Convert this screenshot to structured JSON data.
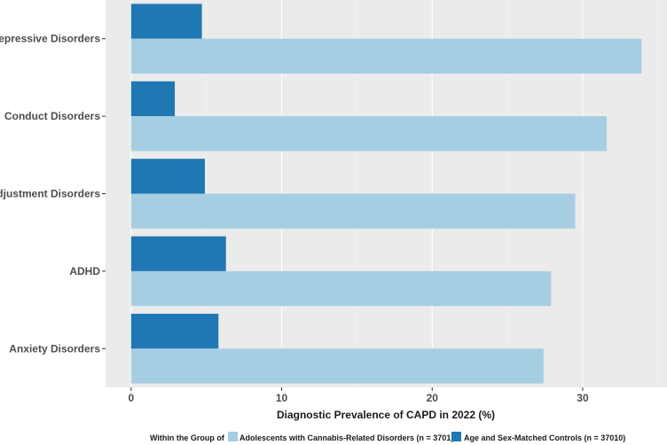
{
  "chart_data": {
    "type": "bar",
    "orientation": "horizontal",
    "categories": [
      "Depressive Disorders",
      "Conduct Disorders",
      "Adjustment Disorders",
      "ADHD",
      "Anxiety Disorders"
    ],
    "series": [
      {
        "name": "Age and Sex-Matched Controls (n = 37010)",
        "color": "#1f78b4",
        "values": [
          4.7,
          2.9,
          4.9,
          6.3,
          5.8
        ]
      },
      {
        "name": "Adolescents with Cannabis-Related Disorders (n = 3701)",
        "color": "#a6cee3",
        "values": [
          33.9,
          31.6,
          29.5,
          27.9,
          27.4
        ]
      }
    ],
    "xlabel": "Diagnostic Prevalence of CAPD in 2022 (%)",
    "ylabel": "",
    "xlim": [
      -1.7,
      35.6
    ],
    "xticks": [
      0,
      10,
      20,
      30
    ],
    "grid": true,
    "legend": {
      "title": "Within the Group of",
      "position": "bottom",
      "order": [
        "Adolescents with Cannabis-Related Disorders (n = 3701)",
        "Age and Sex-Matched Controls (n = 37010)"
      ]
    }
  }
}
